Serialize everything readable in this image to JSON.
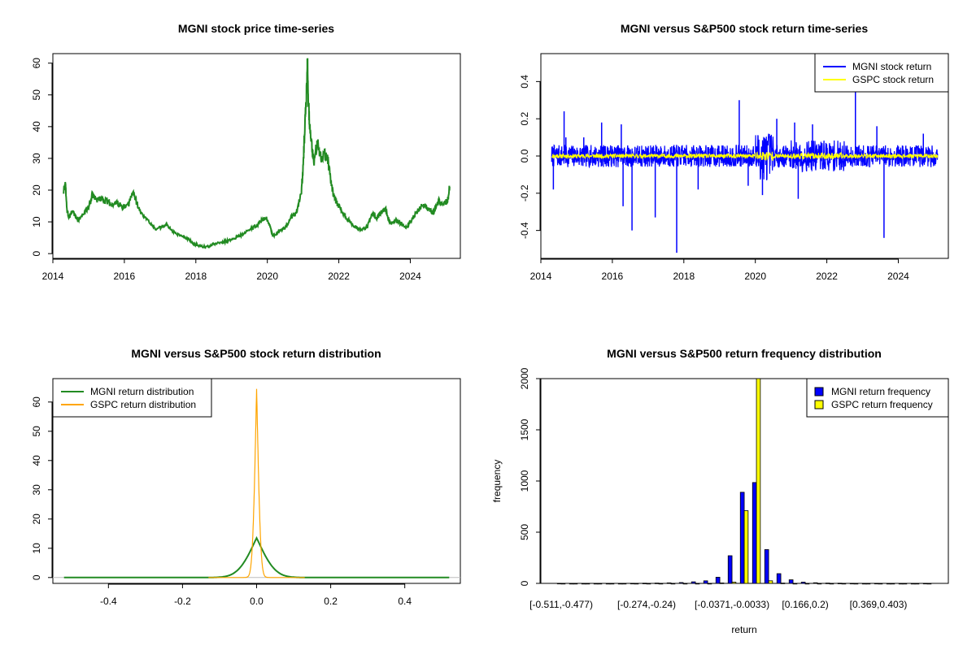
{
  "colors": {
    "green": "#228B22",
    "blue": "#0000FF",
    "yellow": "#FFFF00",
    "orange": "#FFA500",
    "gray": "#BEBEBE",
    "black": "#000000"
  },
  "chart_data": [
    {
      "id": "price",
      "type": "line",
      "title": "MGNI stock price time-series",
      "xlabel": "",
      "ylabel": "",
      "xlim": [
        2014.0,
        2025.4
      ],
      "ylim": [
        -1.5,
        63
      ],
      "xticks": [
        2014,
        2016,
        2018,
        2020,
        2022,
        2024
      ],
      "xtick_labels": [
        "2014",
        "2016",
        "2018",
        "2020",
        "2022",
        "2024"
      ],
      "yticks": [
        0,
        10,
        20,
        30,
        40,
        50,
        60
      ],
      "ytick_labels": [
        "0",
        "10",
        "20",
        "30",
        "40",
        "50",
        "60"
      ],
      "series": [
        {
          "name": "MGNI stock price",
          "color": "#228B22",
          "x": [
            2014.3,
            2014.35,
            2014.4,
            2014.45,
            2014.55,
            2014.7,
            2014.85,
            2015.0,
            2015.1,
            2015.2,
            2015.35,
            2015.5,
            2015.65,
            2015.8,
            2015.95,
            2016.1,
            2016.25,
            2016.3,
            2016.45,
            2016.6,
            2016.75,
            2016.9,
            2017.05,
            2017.2,
            2017.35,
            2017.5,
            2017.65,
            2017.8,
            2017.95,
            2018.1,
            2018.3,
            2018.5,
            2018.7,
            2018.9,
            2019.1,
            2019.3,
            2019.5,
            2019.65,
            2019.8,
            2019.95,
            2020.05,
            2020.15,
            2020.25,
            2020.35,
            2020.5,
            2020.65,
            2020.8,
            2020.95,
            2021.0,
            2021.05,
            2021.1,
            2021.12,
            2021.15,
            2021.2,
            2021.25,
            2021.3,
            2021.4,
            2021.5,
            2021.6,
            2021.7,
            2021.8,
            2021.9,
            2022.0,
            2022.1,
            2022.2,
            2022.35,
            2022.5,
            2022.65,
            2022.8,
            2022.95,
            2023.05,
            2023.15,
            2023.3,
            2023.45,
            2023.6,
            2023.75,
            2023.9,
            2024.05,
            2024.2,
            2024.35,
            2024.5,
            2024.65,
            2024.8,
            2024.95,
            2025.05,
            2025.1
          ],
          "y": [
            19.5,
            22.0,
            13.0,
            11.5,
            13.5,
            10.5,
            12.5,
            14.5,
            18.5,
            17.0,
            17.5,
            16.5,
            15.5,
            16.0,
            14.5,
            15.0,
            19.5,
            17.5,
            13.0,
            11.0,
            9.5,
            7.5,
            8.5,
            9.0,
            7.0,
            6.0,
            5.5,
            4.5,
            3.0,
            2.5,
            2.0,
            3.0,
            3.5,
            4.0,
            5.0,
            6.0,
            7.5,
            8.5,
            10.0,
            11.5,
            9.5,
            5.5,
            6.0,
            7.5,
            8.0,
            11.5,
            12.5,
            19.0,
            27.0,
            40.0,
            52.0,
            61.5,
            48.0,
            38.0,
            33.0,
            29.0,
            35.0,
            30.0,
            32.0,
            29.0,
            21.0,
            17.0,
            15.0,
            13.0,
            11.5,
            9.5,
            8.0,
            7.5,
            8.5,
            13.0,
            11.0,
            12.5,
            14.5,
            9.0,
            10.5,
            9.5,
            8.0,
            11.0,
            13.5,
            15.5,
            14.0,
            13.0,
            16.5,
            16.0,
            17.0,
            21.0
          ]
        }
      ]
    },
    {
      "id": "returns",
      "type": "line",
      "title": "MGNI versus S&P500 stock return time-series",
      "xlabel": "",
      "ylabel": "",
      "xlim": [
        2014.0,
        2025.4
      ],
      "ylim": [
        -0.55,
        0.55
      ],
      "xticks": [
        2014,
        2016,
        2018,
        2020,
        2022,
        2024
      ],
      "xtick_labels": [
        "2014",
        "2016",
        "2018",
        "2020",
        "2022",
        "2024"
      ],
      "yticks": [
        -0.4,
        -0.2,
        0.0,
        0.2,
        0.4
      ],
      "ytick_labels": [
        "-0.4",
        "-0.2",
        "0.0",
        "0.2",
        "0.4"
      ],
      "legend": {
        "position": "top-right",
        "entries": [
          {
            "label": "MGNI stock return",
            "color": "#0000FF",
            "style": "line"
          },
          {
            "label": "GSPC stock return",
            "color": "#FFFF00",
            "style": "line"
          }
        ]
      },
      "series": [
        {
          "name": "MGNI stock return",
          "color": "#0000FF",
          "x_range": [
            2014.3,
            2025.1
          ],
          "amplitude": 0.06,
          "noise_seed": 7
        },
        {
          "name": "GSPC stock return",
          "color": "#FFFF00",
          "x_range": [
            2014.3,
            2025.1
          ],
          "amplitude": 0.012,
          "noise_seed": 11
        }
      ],
      "spikes": [
        {
          "x": 2014.35,
          "y": -0.18
        },
        {
          "x": 2014.65,
          "y": 0.24
        },
        {
          "x": 2014.7,
          "y": 0.1
        },
        {
          "x": 2015.2,
          "y": 0.1
        },
        {
          "x": 2015.7,
          "y": 0.18
        },
        {
          "x": 2016.25,
          "y": 0.17
        },
        {
          "x": 2016.3,
          "y": -0.27
        },
        {
          "x": 2016.55,
          "y": -0.4
        },
        {
          "x": 2017.2,
          "y": -0.33
        },
        {
          "x": 2017.8,
          "y": -0.52
        },
        {
          "x": 2018.4,
          "y": -0.18
        },
        {
          "x": 2019.55,
          "y": 0.3
        },
        {
          "x": 2019.8,
          "y": -0.16
        },
        {
          "x": 2020.2,
          "y": -0.21
        },
        {
          "x": 2020.6,
          "y": 0.2
        },
        {
          "x": 2021.1,
          "y": 0.18
        },
        {
          "x": 2021.2,
          "y": -0.23
        },
        {
          "x": 2021.6,
          "y": 0.17
        },
        {
          "x": 2022.8,
          "y": 0.35
        },
        {
          "x": 2023.6,
          "y": -0.44
        },
        {
          "x": 2023.4,
          "y": 0.16
        },
        {
          "x": 2024.7,
          "y": 0.12
        }
      ]
    },
    {
      "id": "density",
      "type": "line",
      "title": "MGNI versus S&P500 stock return distribution",
      "xlabel": "",
      "ylabel": "",
      "xlim": [
        -0.55,
        0.55
      ],
      "ylim": [
        -2,
        68
      ],
      "xticks": [
        -0.4,
        -0.2,
        0.0,
        0.2,
        0.4
      ],
      "xtick_labels": [
        "-0.4",
        "-0.2",
        "0.0",
        "0.2",
        "0.4"
      ],
      "yticks": [
        0,
        10,
        20,
        30,
        40,
        50,
        60
      ],
      "ytick_labels": [
        "0",
        "10",
        "20",
        "30",
        "40",
        "50",
        "60"
      ],
      "legend": {
        "position": "top-left",
        "entries": [
          {
            "label": "MGNI return distribution",
            "color": "#228B22",
            "style": "line"
          },
          {
            "label": "GSPC return distribution",
            "color": "#FFA500",
            "style": "line"
          }
        ]
      },
      "series": [
        {
          "name": "MGNI return distribution",
          "color": "#228B22",
          "x_range": [
            -0.52,
            0.52
          ],
          "peak": 13.5,
          "scale": 0.03,
          "kind": "laplace"
        },
        {
          "name": "GSPC return distribution",
          "color": "#FFA500",
          "x_range": [
            -0.13,
            0.13
          ],
          "peak": 64.5,
          "scale": 0.0065,
          "kind": "laplace"
        }
      ]
    },
    {
      "id": "hist",
      "type": "bar",
      "title": "MGNI versus S&P500 return frequency distribution",
      "xlabel": "return",
      "ylabel": "frequency",
      "ylim": [
        0,
        2000
      ],
      "yticks": [
        0,
        500,
        1000,
        1500,
        2000
      ],
      "ytick_labels": [
        "0",
        "500",
        "1000",
        "1500",
        "2000"
      ],
      "category_labels": [
        "[-0.511,-0.477)",
        "[-0.274,-0.24)",
        "[-0.0371,-0.0033)",
        "[0.166,0.2)",
        "[0.369,0.403)"
      ],
      "category_label_index": [
        0,
        7,
        14,
        20,
        26
      ],
      "legend": {
        "position": "top-right",
        "entries": [
          {
            "label": "MGNI return frequency",
            "color": "#0000FF",
            "style": "box"
          },
          {
            "label": "GSPC return frequency",
            "color": "#FFFF00",
            "style": "box"
          }
        ]
      },
      "series": [
        {
          "name": "MGNI return frequency",
          "color": "#0000FF",
          "values": [
            1,
            0,
            0,
            0,
            0,
            0,
            1,
            2,
            3,
            5,
            8,
            15,
            25,
            60,
            270,
            890,
            985,
            330,
            95,
            35,
            12,
            6,
            3,
            2,
            1,
            0,
            1,
            0,
            0,
            0,
            1
          ]
        },
        {
          "name": "GSPC return frequency",
          "color": "#FFFF00",
          "values": [
            0,
            0,
            0,
            0,
            0,
            0,
            0,
            0,
            0,
            0,
            0,
            0,
            0,
            4,
            12,
            710,
            2000,
            25,
            3,
            0,
            0,
            0,
            0,
            0,
            0,
            0,
            0,
            0,
            0,
            0,
            0
          ]
        }
      ]
    }
  ]
}
